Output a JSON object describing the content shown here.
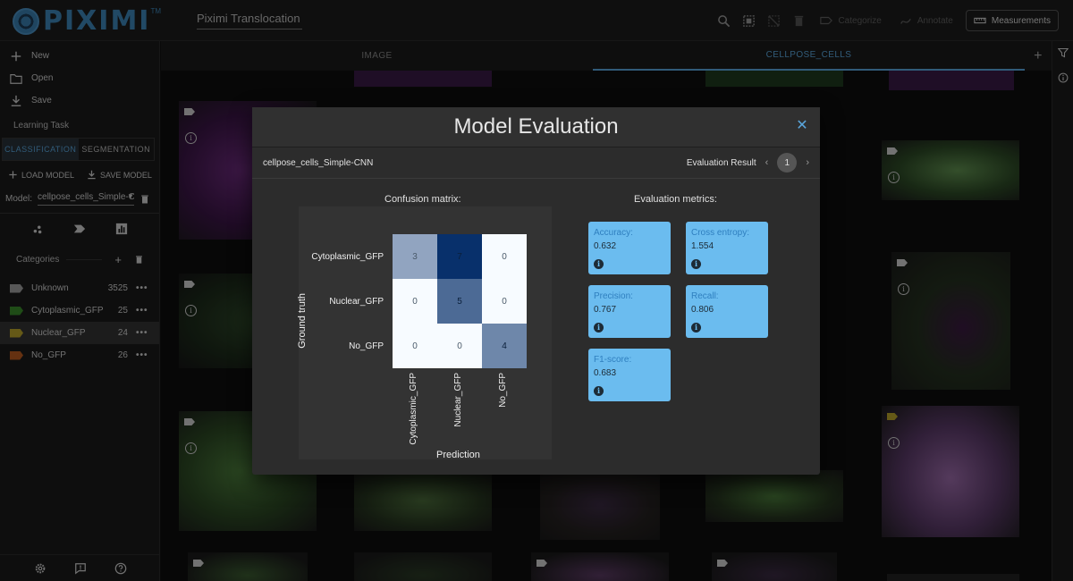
{
  "app": {
    "logo_text": "PIXIMI",
    "logo_tm": "TM",
    "project_name": "Piximi Translocation Tu"
  },
  "toolbar": {
    "categorize": "Categorize",
    "annotate": "Annotate",
    "measurements": "Measurements"
  },
  "sidebar": {
    "menu": [
      "New",
      "Open",
      "Save"
    ],
    "learning_task": "Learning Task",
    "tabs": [
      "CLASSIFICATION",
      "SEGMENTATION"
    ],
    "load_model": "LOAD MODEL",
    "save_model": "SAVE MODEL",
    "model_label": "Model:",
    "model_value": "cellpose_cells_Simple-CNN",
    "categories_title": "Categories",
    "categories": [
      {
        "name": "Unknown",
        "count": "3525",
        "color": "#9e9e9e"
      },
      {
        "name": "Cytoplasmic_GFP",
        "count": "25",
        "color": "#3a8a2a"
      },
      {
        "name": "Nuclear_GFP",
        "count": "24",
        "color": "#b8a22a"
      },
      {
        "name": "No_GFP",
        "count": "26",
        "color": "#b85a1f"
      }
    ]
  },
  "tabs": {
    "image": "IMAGE",
    "cellpose": "CELLPOSE_CELLS"
  },
  "dialog": {
    "title": "Model Evaluation",
    "model_name": "cellpose_cells_Simple-CNN",
    "eval_result_label": "Evaluation Result",
    "page": "1",
    "confusion_title": "Confusion matrix:",
    "metrics_title": "Evaluation metrics:",
    "y_axis": "Ground truth",
    "x_axis": "Prediction",
    "classes": [
      "Cytoplasmic_GFP",
      "Nuclear_GFP",
      "No_GFP"
    ],
    "metrics": [
      {
        "label": "Accuracy:",
        "value": "0.632"
      },
      {
        "label": "Cross entropy:",
        "value": "1.554"
      },
      {
        "label": "Precision:",
        "value": "0.767"
      },
      {
        "label": "Recall:",
        "value": "0.806"
      },
      {
        "label": "F1-score:",
        "value": "0.683"
      }
    ]
  },
  "chart_data": {
    "type": "heatmap",
    "title": "Confusion matrix:",
    "xlabel": "Prediction",
    "ylabel": "Ground truth",
    "x_categories": [
      "Cytoplasmic_GFP",
      "Nuclear_GFP",
      "No_GFP"
    ],
    "y_categories": [
      "Cytoplasmic_GFP",
      "Nuclear_GFP",
      "No_GFP"
    ],
    "values": [
      [
        3,
        7,
        0
      ],
      [
        0,
        5,
        0
      ],
      [
        0,
        0,
        4
      ]
    ],
    "colormap": "Blues"
  },
  "colors": {
    "accent": "#5aa6dc",
    "metric_card": "#6bbcef"
  }
}
